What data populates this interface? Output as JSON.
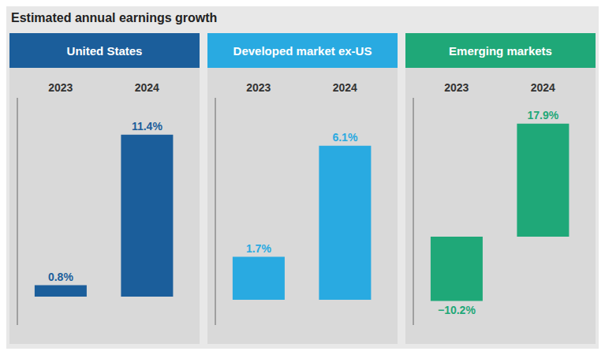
{
  "title": "Estimated annual earnings growth",
  "chart_data": [
    {
      "type": "bar",
      "title": "United States",
      "categories": [
        "2023",
        "2024"
      ],
      "values": [
        0.8,
        11.4
      ],
      "value_labels": [
        "0.8%",
        "11.4%"
      ],
      "data_labels": true,
      "color": "#1b5e9b",
      "ylim": [
        -2.0,
        14.0
      ],
      "grid": false,
      "tick_labels": "x"
    },
    {
      "type": "bar",
      "title": "Developed market ex-US",
      "categories": [
        "2023",
        "2024"
      ],
      "values": [
        1.7,
        6.1
      ],
      "value_labels": [
        "1.7%",
        "6.1%"
      ],
      "data_labels": true,
      "color": "#29aae1",
      "ylim": [
        -1.0,
        8.0
      ],
      "grid": false,
      "tick_labels": "x"
    },
    {
      "type": "bar",
      "title": "Emerging markets",
      "categories": [
        "2023",
        "2024"
      ],
      "values": [
        -10.2,
        17.9
      ],
      "value_labels": [
        "−10.2%",
        "17.9%"
      ],
      "data_labels": true,
      "color": "#1fa878",
      "ylim": [
        -14.0,
        22.0
      ],
      "grid": false,
      "tick_labels": "x"
    }
  ]
}
